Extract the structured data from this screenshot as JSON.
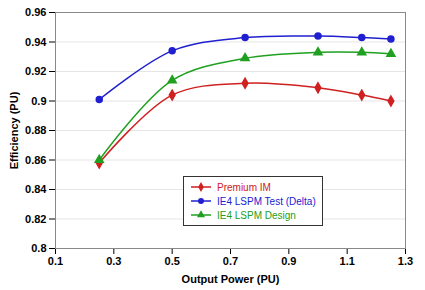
{
  "chart_data": {
    "type": "line",
    "x_label": "Output Power (PU)",
    "y_label": "Efficiency (PU)",
    "x": [
      0.25,
      0.5,
      0.75,
      1.0,
      1.15,
      1.25
    ],
    "series": [
      {
        "name": "Premium IM",
        "color": "#d02020",
        "marker": "diamond",
        "line_style": "smooth",
        "values": [
          0.858,
          0.904,
          0.912,
          0.909,
          0.904,
          0.9
        ]
      },
      {
        "name": "IE4 LSPM Test (Delta)",
        "color": "#2020d0",
        "marker": "circle",
        "line_style": "smooth",
        "values": [
          0.901,
          0.934,
          0.943,
          0.944,
          0.943,
          0.942
        ]
      },
      {
        "name": "IE4 LSPM Design",
        "color": "#20a020",
        "marker": "triangle",
        "line_style": "smooth",
        "values": [
          0.86,
          0.914,
          0.929,
          0.933,
          0.933,
          0.932
        ]
      }
    ],
    "xlim": [
      0.1,
      1.3
    ],
    "xticks": [
      0.1,
      0.3,
      0.5,
      0.7,
      0.9,
      1.1,
      1.3
    ],
    "ylim": [
      0.8,
      0.96
    ],
    "yticks": [
      0.8,
      0.82,
      0.84,
      0.86,
      0.88,
      0.9,
      0.92,
      0.94,
      0.96
    ],
    "grid": "y",
    "legend": "center"
  }
}
